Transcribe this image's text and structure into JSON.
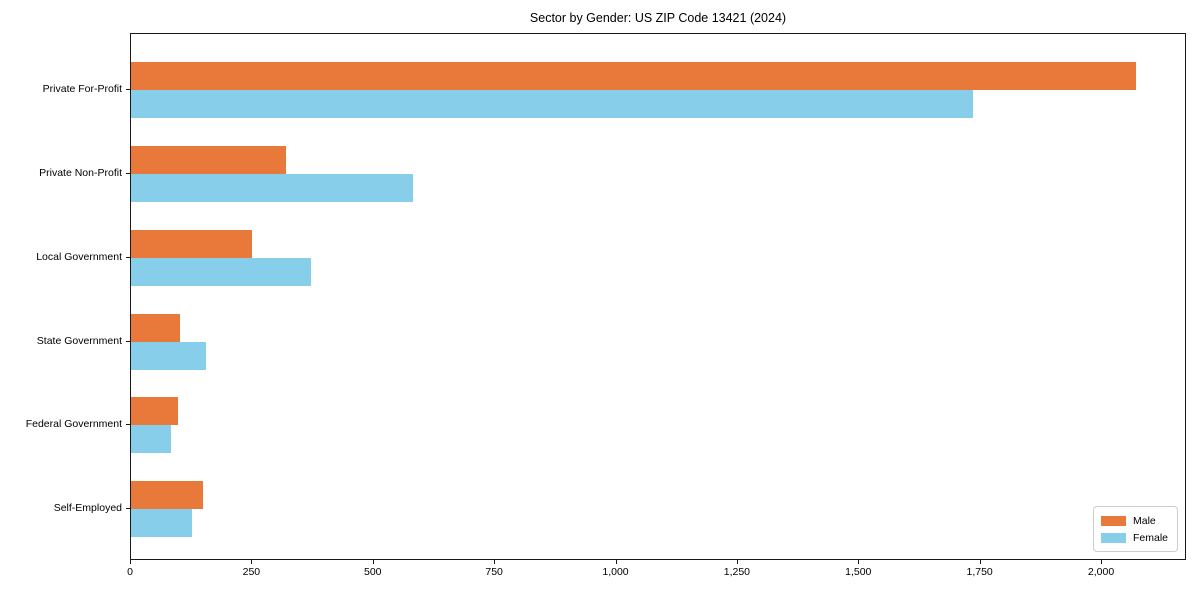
{
  "chart_data": {
    "type": "bar",
    "orientation": "horizontal",
    "title": "Sector by Gender: US ZIP Code 13421 (2024)",
    "categories": [
      "Private For-Profit",
      "Private Non-Profit",
      "Local Government",
      "State Government",
      "Federal Government",
      "Self-Employed"
    ],
    "series": [
      {
        "name": "Male",
        "color": "#E8793B",
        "values": [
          2070,
          320,
          250,
          100,
          97,
          148
        ]
      },
      {
        "name": "Female",
        "color": "#87CEEB",
        "values": [
          1735,
          580,
          370,
          155,
          82,
          125
        ]
      }
    ],
    "xlim": [
      0,
      2175
    ],
    "xticks": [
      0,
      250,
      500,
      750,
      1000,
      1250,
      1500,
      1750,
      2000
    ],
    "xtick_labels": [
      "0",
      "250",
      "500",
      "750",
      "1,000",
      "1,250",
      "1,500",
      "1,750",
      "2,000"
    ],
    "ylabel": "",
    "xlabel": "",
    "grid": false,
    "legend_position": "lower right",
    "legend": {
      "items": [
        "Male",
        "Female"
      ]
    }
  }
}
